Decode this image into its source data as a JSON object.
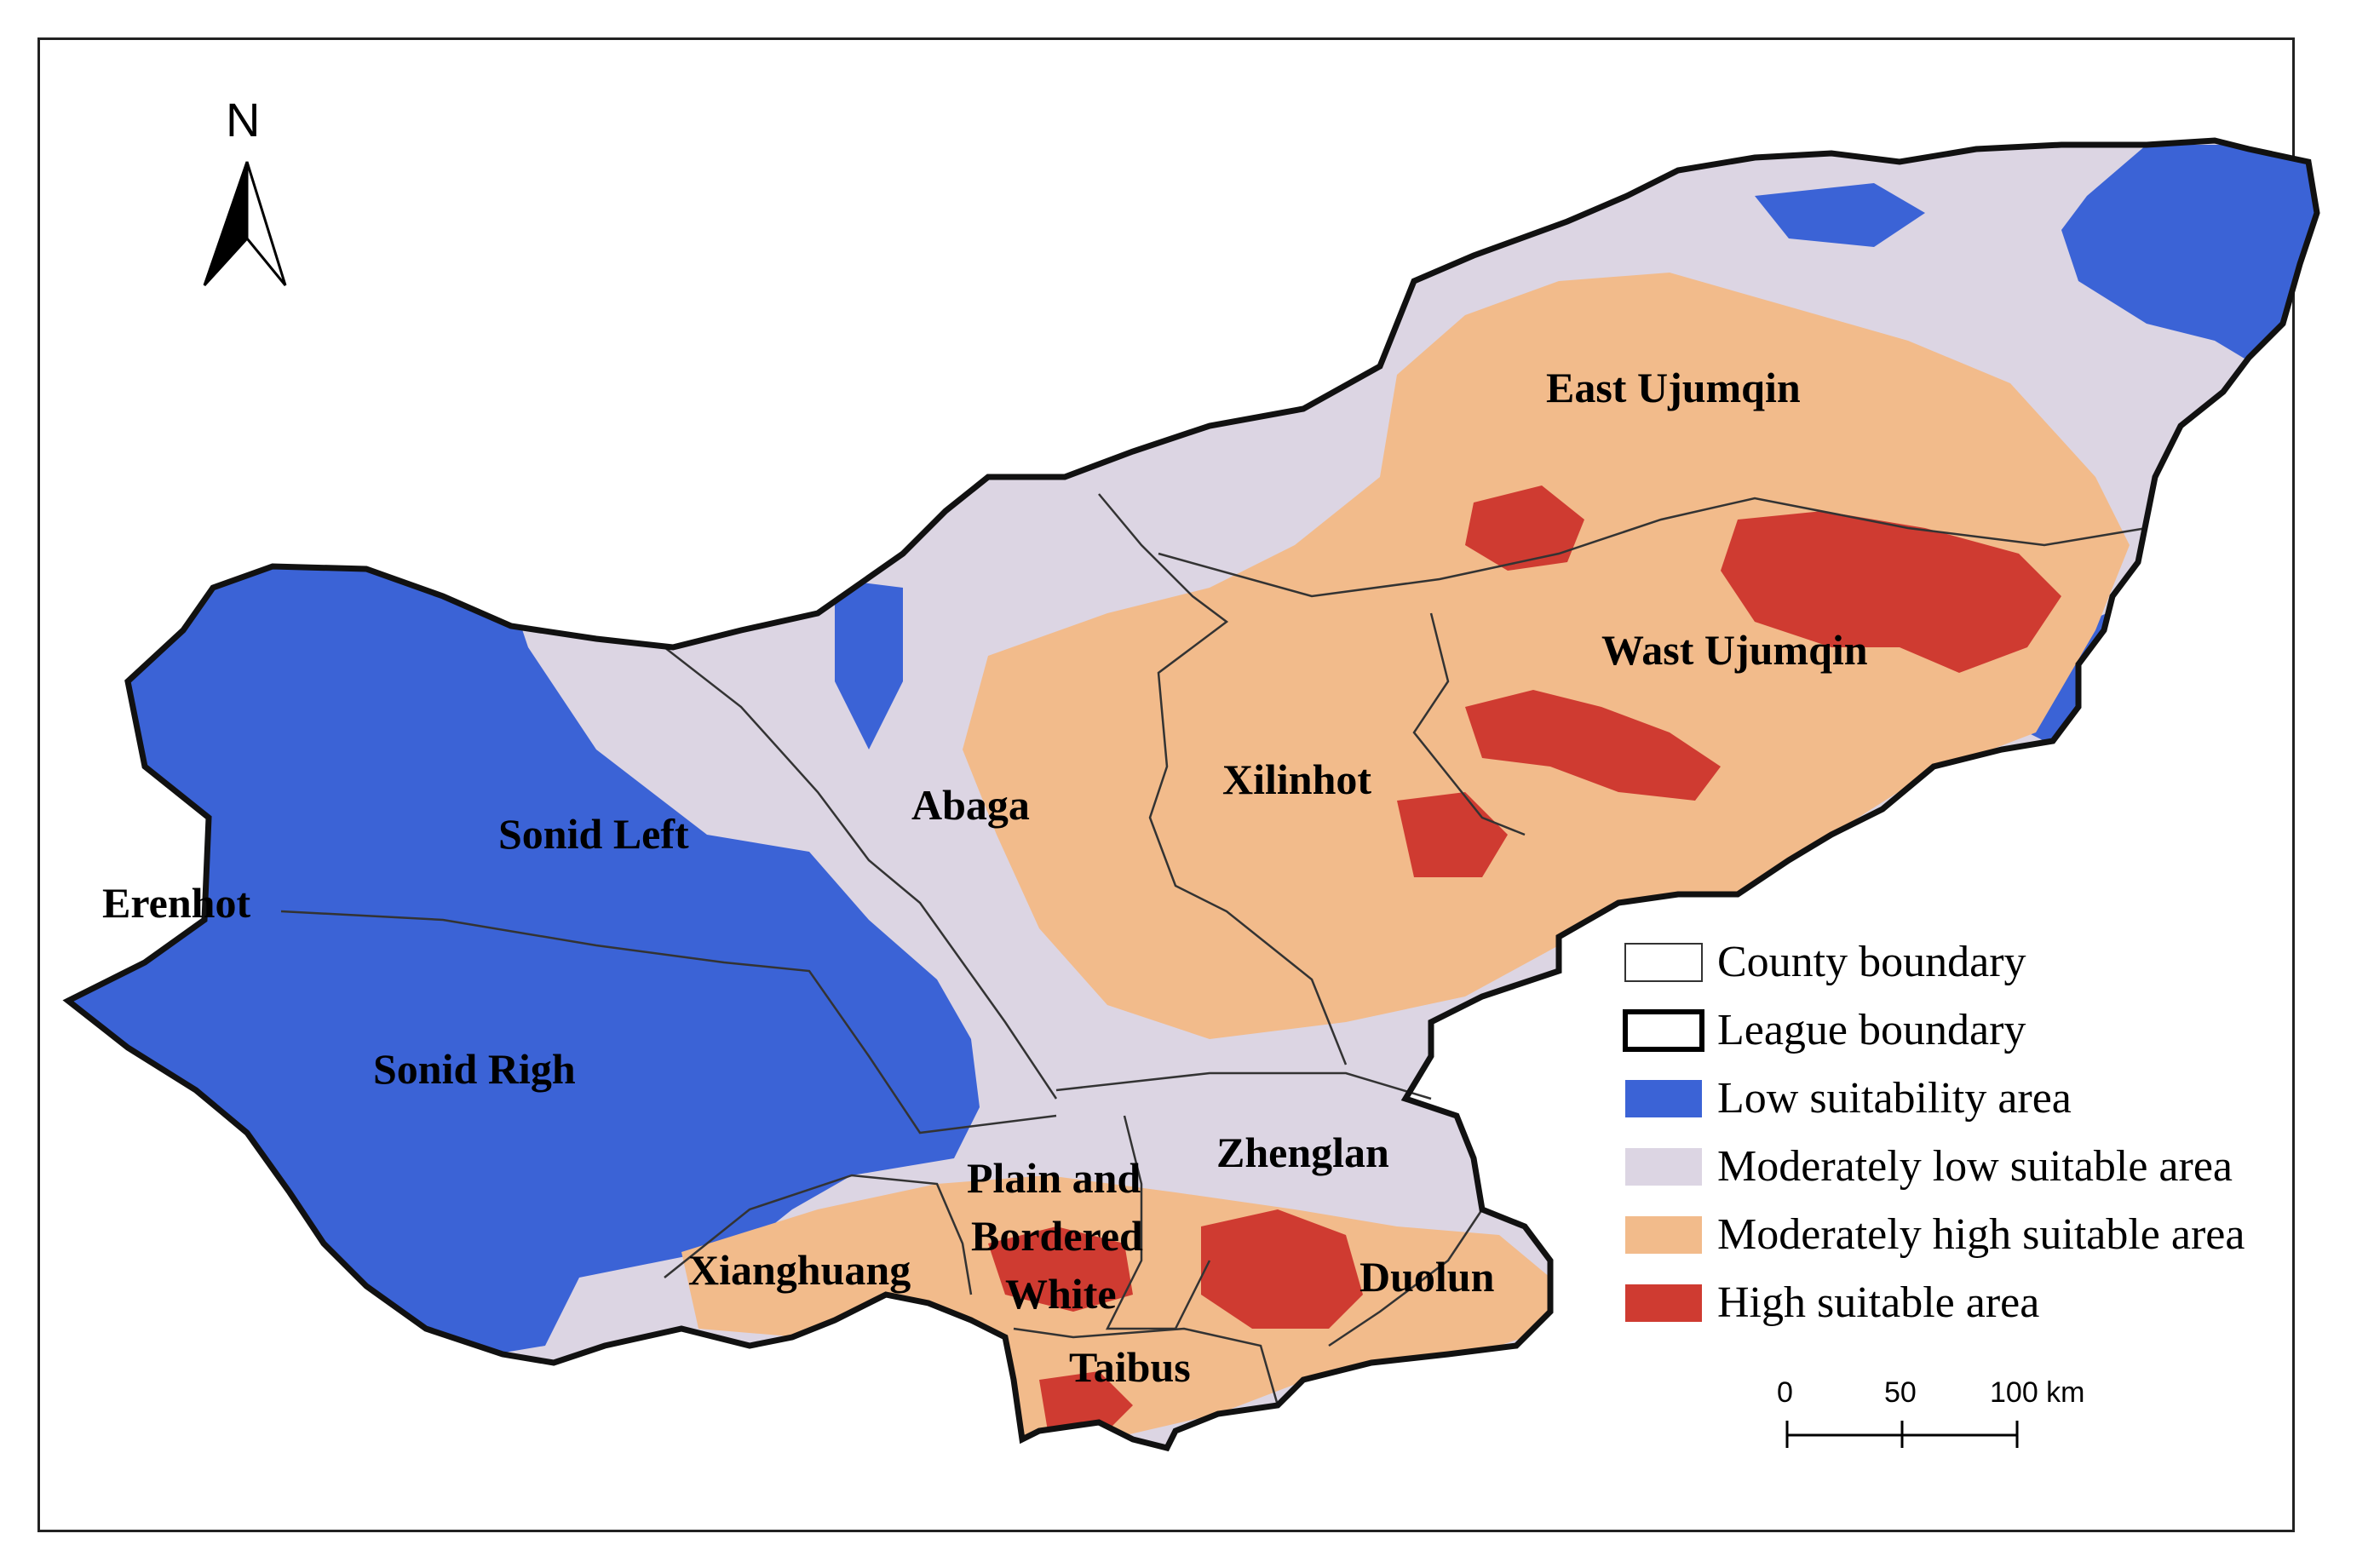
{
  "north_arrow": {
    "label": "N"
  },
  "colors": {
    "low": "#3b63d6",
    "moderately_low": "#dcd5e3",
    "moderately_high": "#f2bb8b",
    "high": "#cf3b31",
    "boundary": "#111111",
    "county_line": "#333333"
  },
  "regions": {
    "east_ujumqin": "East Ujumqin",
    "wast_ujumqin": "Wast Ujumqin",
    "xilinhot": "Xilinhot",
    "abaga": "Abaga",
    "sonid_left": "Sonid Left",
    "erenhot": "Erenhot",
    "sonid_righ": "Sonid Righ",
    "zhenglan": "Zhenglan",
    "plain_line1": "Plain and",
    "plain_line2": "Bordered",
    "plain_line3": "White",
    "xianghuang": "Xianghuang",
    "duolun": "Duolun",
    "taibus": "Taibus"
  },
  "legend": {
    "items": [
      {
        "label": "County boundary",
        "swatch": "county"
      },
      {
        "label": "League boundary",
        "swatch": "league"
      },
      {
        "label": "Low suitability area",
        "swatch": "low"
      },
      {
        "label": "Moderately low suitable area",
        "swatch": "moderately_low"
      },
      {
        "label": "Moderately high suitable area",
        "swatch": "moderately_high"
      },
      {
        "label": "High suitable area",
        "swatch": "high"
      }
    ]
  },
  "scale_bar": {
    "ticks": [
      "0",
      "50",
      "100 km"
    ]
  }
}
